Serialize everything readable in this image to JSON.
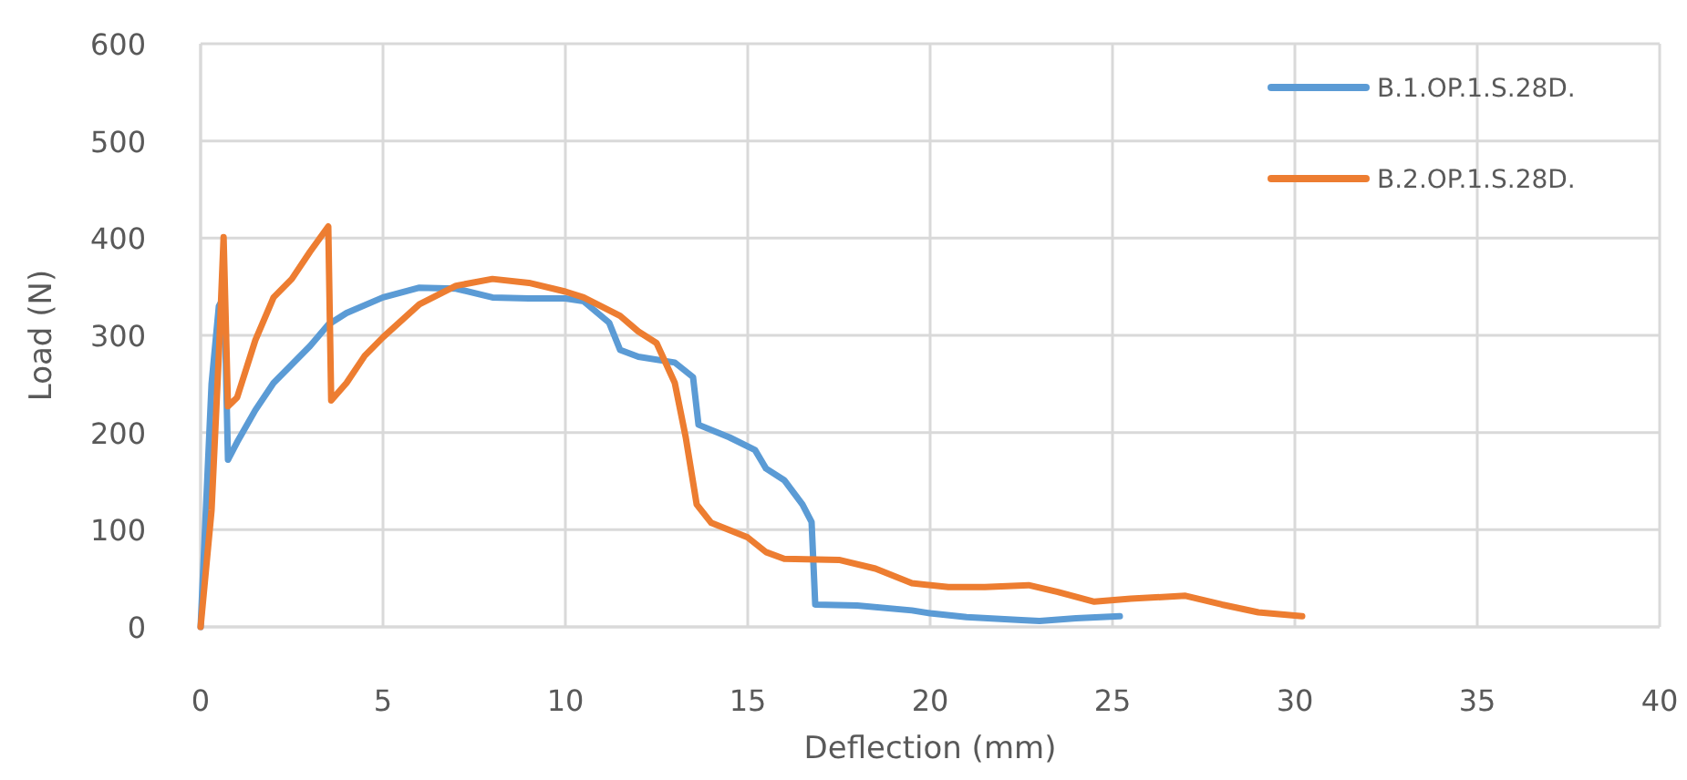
{
  "chart_data": {
    "type": "line",
    "xlabel": "Deflection (mm)",
    "ylabel": "Load (N)",
    "xlim": [
      0,
      40
    ],
    "xticks": [
      0,
      5,
      10,
      15,
      20,
      25,
      30,
      35,
      40
    ],
    "ylim": [
      0,
      600
    ],
    "yticks": [
      0,
      100,
      200,
      300,
      400,
      500,
      600
    ],
    "grid": true,
    "legend": "top right",
    "marker": "none",
    "line_style": "solid",
    "series": [
      {
        "name": "B.1.OP.1.S.28D.",
        "color": "#5b9bd5",
        "x": [
          0,
          0.3,
          0.5,
          0.65,
          0.75,
          1,
          1.5,
          2,
          3,
          3.5,
          4,
          5,
          6,
          7,
          8,
          9,
          10,
          10.5,
          11.2,
          11.5,
          12,
          13,
          13.5,
          13.65,
          14.5,
          15.2,
          15.5,
          16,
          16.5,
          16.75,
          16.85,
          18,
          19.5,
          20,
          21,
          22.5,
          23,
          24,
          25.2
        ],
        "values": [
          0,
          250,
          330,
          340,
          172,
          190,
          223,
          251,
          289,
          311,
          323,
          339,
          349,
          348,
          339,
          338,
          338,
          335,
          313,
          285,
          278,
          272,
          257,
          208,
          195,
          182,
          163,
          151,
          126,
          108,
          23,
          22,
          17,
          14,
          10,
          7,
          6,
          9,
          11
        ]
      },
      {
        "name": "B.2.OP.1.S.28D.",
        "color": "#ed7d31",
        "x": [
          0,
          0.3,
          0.5,
          0.63,
          0.75,
          1,
          1.5,
          2,
          2.5,
          3,
          3.5,
          3.58,
          4,
          4.5,
          5,
          6,
          7,
          8,
          9,
          10,
          10.5,
          11.5,
          12,
          12.5,
          13,
          13.3,
          13.6,
          14,
          15,
          15.5,
          16,
          17.5,
          18.5,
          19.5,
          20.5,
          21.5,
          22.7,
          23.5,
          24.5,
          25.5,
          27,
          28,
          29,
          30.2
        ],
        "values": [
          0,
          120,
          280,
          401,
          227,
          236,
          295,
          339,
          358,
          386,
          412,
          233,
          251,
          279,
          298,
          332,
          351,
          358,
          354,
          345,
          339,
          320,
          304,
          292,
          251,
          195,
          126,
          107,
          92,
          77,
          70,
          69,
          60,
          45,
          41,
          41,
          43,
          36,
          26,
          29,
          32,
          23,
          15,
          11
        ]
      }
    ]
  }
}
